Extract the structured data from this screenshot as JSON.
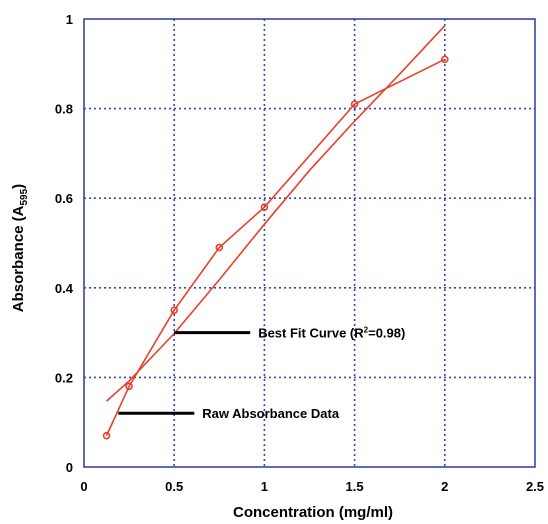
{
  "chart_data": {
    "type": "line",
    "xlabel": "Concentration (mg/ml)",
    "ylabel_main": "Absorbance (A",
    "ylabel_sub": "595",
    "ylabel_close": ")",
    "xlim": [
      0,
      2.5
    ],
    "ylim": [
      0,
      1
    ],
    "grid": true,
    "x_ticks": [
      {
        "value": 0,
        "label": "0"
      },
      {
        "value": 0.5,
        "label": "0.5"
      },
      {
        "value": 1,
        "label": "1"
      },
      {
        "value": 1.5,
        "label": "1.5"
      },
      {
        "value": 2,
        "label": "2"
      },
      {
        "value": 2.5,
        "label": "2.5"
      }
    ],
    "y_ticks": [
      {
        "value": 0,
        "label": "0"
      },
      {
        "value": 0.2,
        "label": "0.2"
      },
      {
        "value": 0.4,
        "label": "0.4"
      },
      {
        "value": 0.6,
        "label": "0.6"
      },
      {
        "value": 0.8,
        "label": "0.8"
      },
      {
        "value": 1,
        "label": "1"
      }
    ],
    "series": [
      {
        "role": "raw",
        "x": [
          0.125,
          0.25,
          0.5,
          0.75,
          1.0,
          1.5,
          2.0
        ],
        "y": [
          0.07,
          0.18,
          0.35,
          0.49,
          0.58,
          0.81,
          0.91
        ],
        "markers": true,
        "color": "#e8402c"
      },
      {
        "role": "fit",
        "x": [
          0.125,
          0.25,
          0.5,
          0.75,
          1.0,
          1.25,
          1.5,
          1.75,
          2.0
        ],
        "y": [
          0.147,
          0.192,
          0.298,
          0.418,
          0.542,
          0.662,
          0.772,
          0.877,
          0.985
        ],
        "markers": false,
        "color": "#e8402c"
      }
    ],
    "annotations": [
      {
        "text": "Best Fit Curve (R",
        "sup": "2",
        "text_end": "=0.98)",
        "x": 0.5,
        "y": 0.3
      },
      {
        "text": "Raw Absorbance Data",
        "x": 0.19,
        "y": 0.12
      }
    ],
    "frame_color": "#2b3aa0",
    "grid_color": "#3a48b0"
  }
}
